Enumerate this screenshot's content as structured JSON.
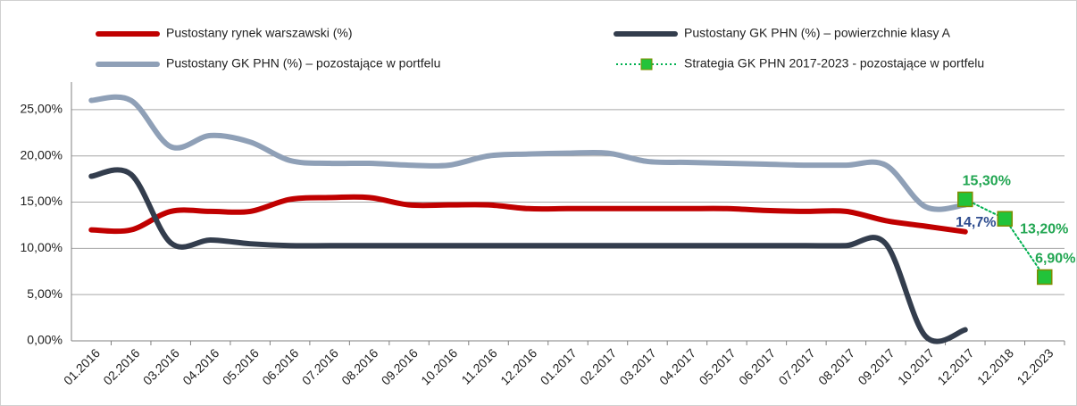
{
  "chart_data": {
    "type": "line",
    "categories": [
      "01.2016",
      "02.2016",
      "03.2016",
      "04.2016",
      "05.2016",
      "06.2016",
      "07.2016",
      "08.2016",
      "09.2016",
      "10.2016",
      "11.2016",
      "12.2016",
      "01.2017",
      "02.2017",
      "03.2017",
      "04.2017",
      "05.2017",
      "06.2017",
      "07.2017",
      "08.2017",
      "09.2017",
      "10.2017",
      "12.2017",
      "12.2018",
      "12.2023"
    ],
    "ylim": [
      0,
      27.5
    ],
    "yticks": [
      {
        "value": 0,
        "label": "0,00%"
      },
      {
        "value": 5,
        "label": "5,00%"
      },
      {
        "value": 10,
        "label": "10,00%"
      },
      {
        "value": 15,
        "label": "15,00%"
      },
      {
        "value": 20,
        "label": "20,00%"
      },
      {
        "value": 25,
        "label": "25,00%"
      }
    ],
    "grid": true,
    "series": [
      {
        "name": "Pustostany rynek warszawski (%)",
        "color": "#c00000",
        "values": [
          12,
          12,
          14,
          14,
          14,
          15.3,
          15.5,
          15.5,
          14.7,
          14.7,
          14.7,
          14.3,
          14.3,
          14.3,
          14.3,
          14.3,
          14.3,
          14.1,
          14.0,
          14.0,
          13.0,
          12.4,
          11.8,
          null,
          null
        ]
      },
      {
        "name": "Pustostany GK PHN (%) – powierzchnie klasy A",
        "color": "#333d4d",
        "values": [
          17.8,
          18,
          10.6,
          10.9,
          10.5,
          10.3,
          10.3,
          10.3,
          10.3,
          10.3,
          10.3,
          10.3,
          10.3,
          10.3,
          10.3,
          10.3,
          10.3,
          10.3,
          10.3,
          10.3,
          10.5,
          0.5,
          1.2,
          null,
          null
        ]
      },
      {
        "name": "Pustostany GK PHN (%) – pozostające w portfelu",
        "color": "#8fa0b7",
        "values": [
          26,
          26,
          21,
          22.2,
          21.5,
          19.5,
          19.2,
          19.2,
          19,
          19,
          20,
          20.2,
          20.3,
          20.3,
          19.4,
          19.3,
          19.2,
          19.1,
          19.0,
          19.0,
          19.0,
          14.5,
          14.7,
          null,
          null
        ],
        "value_labels": [
          null,
          null,
          null,
          null,
          null,
          null,
          null,
          null,
          null,
          null,
          null,
          null,
          null,
          null,
          null,
          null,
          null,
          null,
          null,
          null,
          null,
          null,
          "14,7%",
          null,
          null
        ]
      },
      {
        "name": "Strategia GK PHN 2017-2023 - pozostające w portfelu",
        "color": "#00b050",
        "values": [
          null,
          null,
          null,
          null,
          null,
          null,
          null,
          null,
          null,
          null,
          null,
          null,
          null,
          null,
          null,
          null,
          null,
          null,
          null,
          null,
          null,
          null,
          15.3,
          13.2,
          6.9
        ],
        "value_labels": [
          null,
          null,
          null,
          null,
          null,
          null,
          null,
          null,
          null,
          null,
          null,
          null,
          null,
          null,
          null,
          null,
          null,
          null,
          null,
          null,
          null,
          null,
          "15,30%",
          "13,20%",
          "6,90%"
        ]
      }
    ]
  }
}
